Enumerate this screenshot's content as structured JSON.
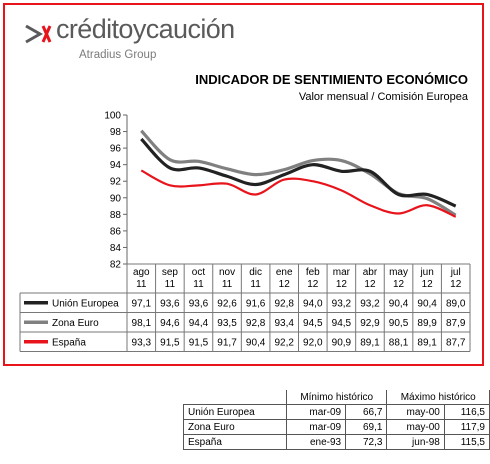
{
  "brand": {
    "name": "créditoycaución",
    "tagline": "Atradius Group",
    "accent_color": "#e8141c",
    "logo_mark": "chevron-arrow-logo"
  },
  "chart_data": {
    "type": "line",
    "title": "INDICADOR DE SENTIMIENTO ECONÓMICO",
    "subtitle": "Valor mensual / Comisión Europea",
    "categories": [
      {
        "month": "ago",
        "year": "11"
      },
      {
        "month": "sep",
        "year": "11"
      },
      {
        "month": "oct",
        "year": "11"
      },
      {
        "month": "nov",
        "year": "11"
      },
      {
        "month": "dic",
        "year": "11"
      },
      {
        "month": "ene",
        "year": "12"
      },
      {
        "month": "feb",
        "year": "12"
      },
      {
        "month": "mar",
        "year": "12"
      },
      {
        "month": "abr",
        "year": "12"
      },
      {
        "month": "may",
        "year": "12"
      },
      {
        "month": "jun",
        "year": "12"
      },
      {
        "month": "jul",
        "year": "12"
      }
    ],
    "ylim": [
      82,
      100
    ],
    "yticks": [
      82,
      84,
      86,
      88,
      90,
      92,
      94,
      96,
      98,
      100
    ],
    "grid": false,
    "legend": "data-table",
    "series": [
      {
        "name": "Unión Europea",
        "color": "#222222",
        "values": [
          97.1,
          93.6,
          93.6,
          92.6,
          91.6,
          92.8,
          94.0,
          93.2,
          93.2,
          90.4,
          90.4,
          89.0
        ],
        "labels": [
          "97,1",
          "93,6",
          "93,6",
          "92,6",
          "91,6",
          "92,8",
          "94,0",
          "93,2",
          "93,2",
          "90,4",
          "90,4",
          "89,0"
        ]
      },
      {
        "name": "Zona Euro",
        "color": "#808080",
        "values": [
          98.1,
          94.6,
          94.4,
          93.5,
          92.8,
          93.4,
          94.5,
          94.5,
          92.9,
          90.5,
          89.9,
          87.9
        ],
        "labels": [
          "98,1",
          "94,6",
          "94,4",
          "93,5",
          "92,8",
          "93,4",
          "94,5",
          "94,5",
          "92,9",
          "90,5",
          "89,9",
          "87,9"
        ]
      },
      {
        "name": "España",
        "color": "#e8141c",
        "values": [
          93.3,
          91.5,
          91.5,
          91.7,
          90.4,
          92.2,
          92.0,
          90.9,
          89.1,
          88.1,
          89.1,
          87.7
        ],
        "labels": [
          "93,3",
          "91,5",
          "91,5",
          "91,7",
          "90,4",
          "92,2",
          "92,0",
          "90,9",
          "89,1",
          "88,1",
          "89,1",
          "87,7"
        ]
      }
    ]
  },
  "historic": {
    "header_min": "Mínimo histórico",
    "header_max": "Máximo histórico",
    "rows": [
      {
        "name": "Unión Europea",
        "min_date": "mar-09",
        "min_value": "66,7",
        "max_date": "may-00",
        "max_value": "116,5"
      },
      {
        "name": "Zona Euro",
        "min_date": "mar-09",
        "min_value": "69,1",
        "max_date": "may-00",
        "max_value": "117,9"
      },
      {
        "name": "España",
        "min_date": "ene-93",
        "min_value": "72,3",
        "max_date": "jun-98",
        "max_value": "115,5"
      }
    ]
  }
}
